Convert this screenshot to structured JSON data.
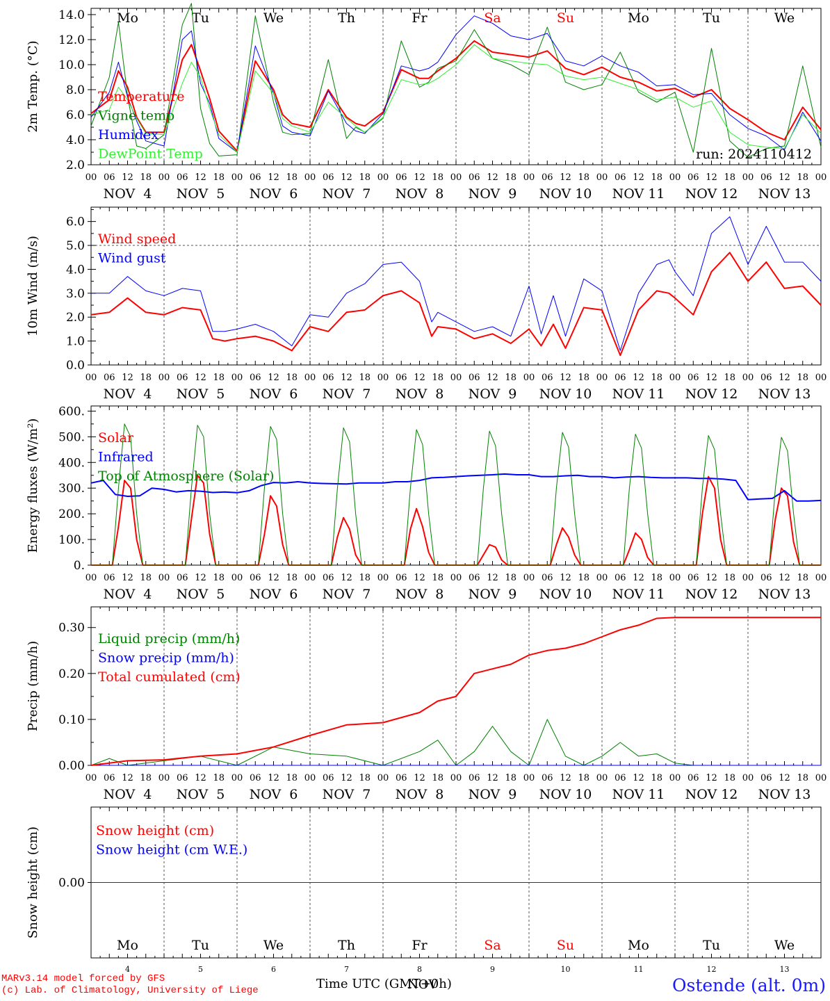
{
  "page": {
    "credits": [
      "MARv3.14 model forced by GFS",
      "(c) Lab. of Climatology, University of Liege"
    ],
    "station": "Ostende (alt. 0m)",
    "run_label": "run: 2024110412",
    "x_axis_title": "Time UTC (GMT+0h)",
    "x_axis_month": "NOV"
  },
  "days": {
    "weekday_labels": [
      "Mo",
      "Tu",
      "We",
      "Th",
      "Fr",
      "Sa",
      "Su",
      "Mo",
      "Tu",
      "We"
    ],
    "weekend_color": "#ff0000",
    "normal_color": "#000000",
    "date_labels": [
      "NOV  4",
      "NOV  5",
      "NOV  6",
      "NOV  7",
      "NOV  8",
      "NOV  9",
      "NOV 10",
      "NOV 11",
      "NOV 12",
      "NOV 13"
    ],
    "day_numbers": [
      "4",
      "5",
      "6",
      "7",
      "8",
      "9",
      "10",
      "11",
      "12",
      "13"
    ],
    "hour_ticks": [
      "00",
      "06",
      "12",
      "18"
    ],
    "final_tick": "00"
  },
  "chart_data": [
    {
      "type": "line",
      "ylabel": "2m Temp. (°C)",
      "ylim": [
        2,
        14.5
      ],
      "yticks": [
        "2.0",
        "4.0",
        "6.0",
        "8.0",
        "10.0",
        "12.0",
        "14.0"
      ],
      "ytick_values": [
        2,
        4,
        6,
        8,
        10,
        12,
        14
      ],
      "show_weekdays": true,
      "annotation": "run: 2024110412",
      "x": [
        0,
        6,
        9,
        12,
        15,
        18,
        24,
        30,
        33,
        36,
        39,
        42,
        48,
        54,
        60,
        63,
        66,
        72,
        78,
        84,
        87,
        90,
        96,
        102,
        108,
        111,
        114,
        120,
        126,
        132,
        138,
        144,
        150,
        156,
        162,
        168,
        174,
        180,
        186,
        192,
        198,
        204,
        210,
        216,
        222,
        228,
        234,
        240
      ],
      "series": [
        {
          "name": "Temperature",
          "color": "#ff0000",
          "width": 2,
          "values": [
            6.1,
            7.2,
            9.5,
            8.2,
            5.8,
            4.6,
            4.6,
            10.4,
            11.6,
            9.5,
            7.3,
            4.7,
            3.1,
            10.3,
            8.0,
            6.0,
            5.3,
            5.0,
            8.0,
            5.8,
            5.3,
            5.1,
            6.2,
            9.6,
            8.9,
            8.9,
            9.5,
            10.5,
            11.9,
            11.0,
            10.8,
            10.6,
            11.1,
            9.7,
            9.2,
            9.8,
            9.0,
            8.6,
            7.9,
            8.1,
            7.4,
            8.0,
            6.5,
            5.6,
            4.6,
            4.0,
            6.6,
            4.8
          ]
        },
        {
          "name": "Vigne temp",
          "color": "#008000",
          "width": 1,
          "values": [
            5.1,
            9.0,
            13.4,
            7.5,
            3.5,
            3.3,
            4.4,
            13.2,
            14.9,
            6.5,
            3.7,
            2.7,
            2.8,
            13.9,
            7.0,
            4.6,
            4.4,
            4.5,
            10.4,
            4.1,
            5.0,
            4.6,
            5.7,
            11.9,
            8.2,
            8.6,
            9.7,
            10.3,
            12.8,
            10.5,
            10.0,
            9.2,
            13.0,
            8.6,
            8.0,
            8.4,
            11.0,
            7.8,
            7.0,
            7.8,
            3.0,
            11.3,
            3.9,
            2.6,
            3.3,
            3.5,
            9.9,
            3.4
          ]
        },
        {
          "name": "Humidex",
          "color": "#0000ff",
          "width": 1,
          "values": [
            5.8,
            7.8,
            10.2,
            7.4,
            5.5,
            3.9,
            3.5,
            12.0,
            12.7,
            8.5,
            6.9,
            4.1,
            3.0,
            11.5,
            7.7,
            5.1,
            4.6,
            4.3,
            7.9,
            5.3,
            4.7,
            4.5,
            6.1,
            9.9,
            9.5,
            9.7,
            10.2,
            12.4,
            13.9,
            13.3,
            12.3,
            12.0,
            12.5,
            10.3,
            9.9,
            10.7,
            9.9,
            9.4,
            8.3,
            8.4,
            7.6,
            7.7,
            6.0,
            4.9,
            4.3,
            3.2,
            6.2,
            3.9
          ]
        },
        {
          "name": "DewPoint Temp",
          "color": "#33ee33",
          "width": 1,
          "values": [
            6.0,
            6.4,
            8.2,
            7.2,
            5.7,
            4.5,
            4.4,
            8.5,
            10.2,
            9.0,
            6.5,
            4.4,
            3.0,
            9.5,
            7.7,
            5.7,
            5.1,
            4.6,
            7.0,
            5.7,
            5.1,
            4.6,
            5.8,
            8.8,
            8.4,
            8.5,
            8.9,
            10.0,
            11.6,
            10.5,
            10.3,
            10.1,
            10.0,
            9.1,
            8.8,
            9.0,
            8.5,
            8.0,
            7.2,
            7.4,
            6.6,
            7.1,
            4.6,
            3.6,
            3.4,
            3.3,
            6.0,
            4.5
          ]
        }
      ],
      "legend_placement": "top-left"
    },
    {
      "type": "line",
      "ylabel": "10m Wind (m/s)",
      "ylim": [
        0,
        6.6
      ],
      "yticks": [
        "0.0",
        "1.0",
        "2.0",
        "3.0",
        "4.0",
        "5.0",
        "6.0"
      ],
      "ytick_values": [
        0,
        1,
        2,
        3,
        4,
        5,
        6
      ],
      "reference_line": 5.0,
      "show_weekdays": false,
      "x": [
        0,
        6,
        12,
        18,
        24,
        30,
        36,
        40,
        44,
        48,
        54,
        60,
        66,
        72,
        78,
        84,
        90,
        96,
        102,
        108,
        112,
        114,
        120,
        126,
        132,
        138,
        144,
        148,
        152,
        156,
        162,
        168,
        174,
        180,
        186,
        190,
        192,
        198,
        204,
        210,
        216,
        222,
        228,
        234,
        240
      ],
      "series": [
        {
          "name": "Wind speed",
          "color": "#ff0000",
          "width": 2,
          "values": [
            2.1,
            2.2,
            2.8,
            2.2,
            2.1,
            2.4,
            2.3,
            1.1,
            1.0,
            1.1,
            1.2,
            1.0,
            0.6,
            1.6,
            1.4,
            2.2,
            2.3,
            2.9,
            3.1,
            2.6,
            1.2,
            1.6,
            1.5,
            1.1,
            1.3,
            0.9,
            1.5,
            0.8,
            1.7,
            0.7,
            2.4,
            2.3,
            0.4,
            2.3,
            3.1,
            3.0,
            2.8,
            2.1,
            3.9,
            4.7,
            3.5,
            4.3,
            3.2,
            3.3,
            2.5
          ]
        },
        {
          "name": "Wind gust",
          "color": "#0000ff",
          "width": 1,
          "values": [
            3.0,
            3.0,
            3.7,
            3.1,
            2.9,
            3.2,
            3.1,
            1.4,
            1.4,
            1.5,
            1.7,
            1.4,
            0.8,
            2.1,
            2.0,
            3.0,
            3.4,
            4.2,
            4.3,
            3.5,
            1.8,
            2.2,
            1.8,
            1.4,
            1.6,
            1.2,
            3.3,
            1.3,
            2.9,
            1.2,
            3.6,
            3.1,
            0.6,
            3.0,
            4.2,
            4.4,
            3.9,
            2.9,
            5.5,
            6.2,
            4.2,
            5.8,
            4.3,
            4.3,
            3.5
          ]
        }
      ],
      "legend_placement": "top-left"
    },
    {
      "type": "line",
      "ylabel": "Energy fluxes (W/m²)",
      "ylim": [
        0,
        620
      ],
      "yticks": [
        "0.",
        "100.",
        "200.",
        "300.",
        "400.",
        "500.",
        "600."
      ],
      "ytick_values": [
        0,
        100,
        200,
        300,
        400,
        500,
        600
      ],
      "show_weekdays": false,
      "x_solar": [
        0,
        7,
        9,
        11,
        13,
        15,
        17,
        24,
        31,
        33,
        35,
        37,
        39,
        41,
        48,
        55,
        57,
        59,
        61,
        63,
        65,
        72,
        79,
        81,
        83,
        85,
        87,
        89,
        96,
        103,
        105,
        107,
        109,
        111,
        113,
        120,
        127,
        129,
        131,
        133,
        135,
        137,
        144,
        151,
        153,
        155,
        157,
        159,
        161,
        168,
        175,
        177,
        179,
        181,
        183,
        185,
        192,
        199,
        201,
        203,
        205,
        207,
        209,
        216,
        223,
        225,
        227,
        229,
        231,
        233,
        240
      ],
      "x_flux": [
        0,
        4,
        8,
        12,
        16,
        20,
        24,
        28,
        32,
        36,
        40,
        44,
        48,
        52,
        56,
        60,
        64,
        68,
        72,
        76,
        80,
        84,
        88,
        92,
        96,
        100,
        104,
        108,
        112,
        116,
        120,
        124,
        128,
        132,
        136,
        140,
        144,
        148,
        152,
        156,
        160,
        164,
        168,
        172,
        176,
        180,
        184,
        188,
        192,
        196,
        200,
        204,
        208,
        212,
        216,
        220,
        224,
        228,
        232,
        236,
        240
      ],
      "series": [
        {
          "name": "Solar",
          "color": "#ff0000",
          "width": 2,
          "xkey": "x_solar",
          "values": [
            0,
            0,
            150,
            330,
            300,
            100,
            0,
            0,
            0,
            180,
            350,
            320,
            120,
            0,
            0,
            0,
            120,
            270,
            230,
            80,
            0,
            0,
            0,
            110,
            185,
            140,
            40,
            0,
            0,
            0,
            140,
            220,
            150,
            50,
            0,
            0,
            0,
            40,
            80,
            70,
            20,
            0,
            0,
            0,
            80,
            145,
            110,
            40,
            0,
            0,
            0,
            60,
            125,
            100,
            30,
            0,
            0,
            0,
            200,
            345,
            300,
            100,
            0,
            0,
            0,
            180,
            300,
            270,
            90,
            0,
            0
          ]
        },
        {
          "name": "Infrared",
          "color": "#0000ff",
          "width": 2,
          "xkey": "x_flux",
          "values": [
            320,
            330,
            275,
            268,
            270,
            300,
            295,
            285,
            290,
            288,
            283,
            285,
            282,
            290,
            310,
            322,
            320,
            325,
            320,
            318,
            317,
            316,
            320,
            320,
            320,
            325,
            325,
            330,
            340,
            342,
            345,
            348,
            350,
            352,
            355,
            352,
            352,
            345,
            345,
            348,
            350,
            345,
            345,
            340,
            343,
            345,
            342,
            340,
            340,
            340,
            338,
            338,
            335,
            330,
            255,
            258,
            260,
            290,
            250,
            250,
            252
          ]
        },
        {
          "name": "Top of Atmosphere (Solar)",
          "color": "#008000",
          "width": 1,
          "xkey": "x_solar",
          "values": [
            0,
            0,
            300,
            550,
            500,
            200,
            0,
            0,
            0,
            300,
            545,
            500,
            200,
            0,
            0,
            0,
            300,
            540,
            490,
            200,
            0,
            0,
            0,
            300,
            535,
            480,
            200,
            0,
            0,
            0,
            300,
            528,
            470,
            200,
            0,
            0,
            0,
            300,
            522,
            465,
            200,
            0,
            0,
            0,
            300,
            517,
            460,
            200,
            0,
            0,
            0,
            300,
            510,
            455,
            200,
            0,
            0,
            0,
            300,
            505,
            450,
            200,
            0,
            0,
            0,
            300,
            498,
            445,
            200,
            0,
            0
          ]
        }
      ],
      "legend_placement": "top-left"
    },
    {
      "type": "line",
      "ylabel": "Precip (mm/h)",
      "ylim": [
        0,
        0.345
      ],
      "yticks": [
        "0.00",
        "0.10",
        "0.20",
        "0.30"
      ],
      "ytick_values": [
        0,
        0.1,
        0.2,
        0.3
      ],
      "show_weekdays": false,
      "x": [
        0,
        6,
        12,
        24,
        36,
        48,
        60,
        72,
        84,
        96,
        108,
        114,
        120,
        126,
        132,
        138,
        144,
        150,
        156,
        162,
        168,
        174,
        180,
        186,
        192,
        198,
        216,
        240
      ],
      "series": [
        {
          "name": "Liquid precip (mm/h)",
          "color": "#008000",
          "width": 1,
          "values": [
            0.0,
            0.015,
            0.0,
            0.01,
            0.02,
            0.0,
            0.04,
            0.025,
            0.02,
            0.0,
            0.03,
            0.055,
            0.0,
            0.03,
            0.085,
            0.03,
            0.0,
            0.1,
            0.02,
            0.0,
            0.02,
            0.05,
            0.02,
            0.025,
            0.005,
            0.0,
            0.0,
            0.0
          ]
        },
        {
          "name": "Snow precip (mm/h)",
          "color": "#0000ff",
          "width": 1,
          "values": [
            0,
            0,
            0,
            0,
            0,
            0,
            0,
            0,
            0,
            0,
            0,
            0,
            0,
            0,
            0,
            0,
            0,
            0,
            0,
            0,
            0,
            0,
            0,
            0,
            0,
            0,
            0,
            0
          ]
        },
        {
          "name": "Total cumulated (cm)",
          "color": "#ff0000",
          "width": 2,
          "values": [
            0.0,
            0.005,
            0.01,
            0.012,
            0.02,
            0.025,
            0.04,
            0.065,
            0.088,
            0.093,
            0.115,
            0.14,
            0.15,
            0.2,
            0.21,
            0.22,
            0.24,
            0.25,
            0.255,
            0.265,
            0.28,
            0.295,
            0.305,
            0.32,
            0.322,
            0.322,
            0.322,
            0.322
          ]
        }
      ],
      "legend_placement": "top-left"
    },
    {
      "type": "line",
      "ylabel": "Snow height (cm)",
      "ylim": [
        -1,
        1
      ],
      "yticks": [
        "0.00"
      ],
      "ytick_values": [
        0
      ],
      "show_weekdays_bottom": true,
      "x": [
        0,
        240
      ],
      "series": [
        {
          "name": "Snow height (cm)",
          "color": "#ff0000",
          "width": 1,
          "values": [
            0,
            0
          ]
        },
        {
          "name": "Snow height (cm W.E.)",
          "color": "#0000ff",
          "width": 1,
          "values": [
            0,
            0
          ]
        }
      ],
      "line_color": "#800080",
      "legend_placement": "top-left"
    }
  ]
}
